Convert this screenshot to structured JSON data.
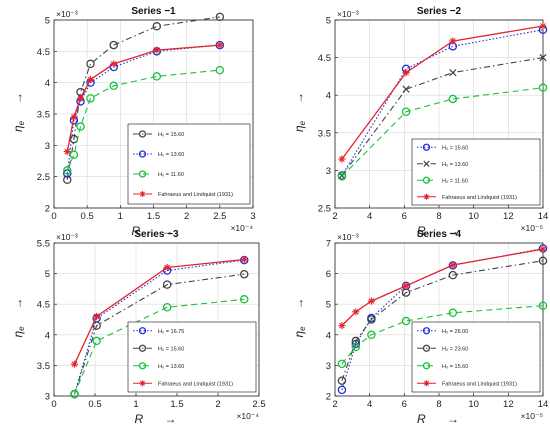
{
  "figure": {
    "title": ""
  },
  "chart_data": [
    {
      "type": "line",
      "title": "Series −1",
      "xlabel": "R",
      "ylabel": "η",
      "ylabel_sub": "e",
      "xlim": [
        0,
        3
      ],
      "ylim": [
        2,
        5
      ],
      "xticks": [
        0,
        0.5,
        1,
        1.5,
        2,
        2.5,
        3
      ],
      "yticks": [
        2,
        2.5,
        3,
        3.5,
        4,
        4.5,
        5
      ],
      "xtick_labels": [
        "0",
        "0.5",
        "1",
        "1.5",
        "2",
        "2.5",
        "3"
      ],
      "ytick_labels": [
        "2",
        "2.5",
        "3",
        "3.5",
        "4",
        "4.5",
        "5"
      ],
      "x_multiplier": "×10⁻⁴",
      "y_multiplier": "×10⁻³",
      "grid": true,
      "legend_position": "bottom-right",
      "series": [
        {
          "name": "H₀ = 15.60",
          "color": "#444444",
          "dash": "6,3,1.5,3",
          "marker": "circle",
          "x": [
            0.2,
            0.3,
            0.4,
            0.55,
            0.9,
            1.55,
            2.5
          ],
          "y": [
            2.45,
            3.1,
            3.85,
            4.3,
            4.6,
            4.9,
            5.05
          ]
        },
        {
          "name": "H₀ = 13.60",
          "color": "#1f2fd6",
          "dash": "1.5,2",
          "marker": "circle",
          "x": [
            0.2,
            0.3,
            0.4,
            0.55,
            0.9,
            1.55,
            2.5
          ],
          "y": [
            2.55,
            3.4,
            3.7,
            4.0,
            4.25,
            4.5,
            4.6
          ]
        },
        {
          "name": "H₀ = 11.60",
          "color": "#19c23a",
          "dash": "6,4",
          "marker": "circle",
          "x": [
            0.2,
            0.3,
            0.4,
            0.55,
            0.9,
            1.55,
            2.5
          ],
          "y": [
            2.6,
            2.85,
            3.3,
            3.75,
            3.95,
            4.1,
            4.2
          ]
        },
        {
          "name": "Fahraeus and Lindquist (1931)",
          "color": "#e3242b",
          "dash": "",
          "marker": "star",
          "x": [
            0.2,
            0.3,
            0.4,
            0.55,
            0.9,
            1.55,
            2.5
          ],
          "y": [
            2.9,
            3.45,
            3.75,
            4.05,
            4.3,
            4.52,
            4.6
          ]
        }
      ]
    },
    {
      "type": "line",
      "title": "Series −2",
      "xlabel": "R",
      "ylabel": "η",
      "ylabel_sub": "e",
      "xlim": [
        2,
        14
      ],
      "ylim": [
        2.5,
        5
      ],
      "xticks": [
        2,
        4,
        6,
        8,
        10,
        12,
        14
      ],
      "yticks": [
        2.5,
        3,
        3.5,
        4,
        4.5,
        5
      ],
      "xtick_labels": [
        "2",
        "4",
        "6",
        "8",
        "10",
        "12",
        "14"
      ],
      "ytick_labels": [
        "2.5",
        "3",
        "3.5",
        "4",
        "4.5",
        "5"
      ],
      "x_multiplier": "×10⁻⁵",
      "y_multiplier": "×10⁻³",
      "grid": true,
      "legend_position": "bottom-right",
      "series": [
        {
          "name": "H₀ = 15.60",
          "color": "#1f2fd6",
          "dash": "1.5,2",
          "marker": "circle",
          "x": [
            2.4,
            6.1,
            8.8,
            14
          ],
          "y": [
            2.93,
            4.35,
            4.65,
            4.87
          ]
        },
        {
          "name": "H₀ = 13.60",
          "color": "#444444",
          "dash": "6,3,1.5,3",
          "marker": "x",
          "x": [
            2.4,
            6.1,
            8.8,
            14
          ],
          "y": [
            2.93,
            4.08,
            4.3,
            4.5
          ]
        },
        {
          "name": "H₀ = 11.60",
          "color": "#19c23a",
          "dash": "6,4",
          "marker": "circle",
          "x": [
            2.4,
            6.1,
            8.8,
            14
          ],
          "y": [
            2.92,
            3.78,
            3.95,
            4.1
          ]
        },
        {
          "name": "Fahraeus and Lindquist (1931)",
          "color": "#e3242b",
          "dash": "",
          "marker": "star",
          "x": [
            2.4,
            6.1,
            8.8,
            14
          ],
          "y": [
            3.15,
            4.3,
            4.72,
            4.92
          ]
        }
      ]
    },
    {
      "type": "line",
      "title": "Series −3",
      "xlabel": "R",
      "ylabel": "η",
      "ylabel_sub": "e",
      "xlim": [
        0,
        2.5
      ],
      "ylim": [
        3,
        5.5
      ],
      "xticks": [
        0,
        0.5,
        1,
        1.5,
        2,
        2.5
      ],
      "yticks": [
        3,
        3.5,
        4,
        4.5,
        5,
        5.5
      ],
      "xtick_labels": [
        "0",
        "0.5",
        "1",
        "1.5",
        "2",
        "2.5"
      ],
      "ytick_labels": [
        "3",
        "3.5",
        "4",
        "4.5",
        "5",
        "5.5"
      ],
      "x_multiplier": "×10⁻⁴",
      "y_multiplier": "×10⁻³",
      "grid": true,
      "legend_position": "bottom-right",
      "series": [
        {
          "name": "H₀ = 16.75",
          "color": "#1f2fd6",
          "dash": "1.5,2",
          "marker": "circle",
          "x": [
            0.25,
            0.52,
            1.38,
            2.32
          ],
          "y": [
            3.03,
            4.27,
            5.05,
            5.22
          ]
        },
        {
          "name": "H₀ = 15.60",
          "color": "#444444",
          "dash": "6,3,1.5,3",
          "marker": "circle",
          "x": [
            0.25,
            0.52,
            1.38,
            2.32
          ],
          "y": [
            3.03,
            4.15,
            4.82,
            4.99
          ]
        },
        {
          "name": "H₀ = 13.60",
          "color": "#19c23a",
          "dash": "6,4",
          "marker": "circle",
          "x": [
            0.25,
            0.52,
            1.38,
            2.32
          ],
          "y": [
            3.03,
            3.9,
            4.45,
            4.58
          ]
        },
        {
          "name": "Fahraeus and Lindquist (1931)",
          "color": "#e3242b",
          "dash": "",
          "marker": "star",
          "x": [
            0.25,
            0.52,
            1.38,
            2.32
          ],
          "y": [
            3.52,
            4.3,
            5.1,
            5.23
          ]
        }
      ]
    },
    {
      "type": "line",
      "title": "Series −4",
      "xlabel": "R",
      "ylabel": "η",
      "ylabel_sub": "e",
      "xlim": [
        2,
        14
      ],
      "ylim": [
        2,
        7
      ],
      "xticks": [
        2,
        4,
        6,
        8,
        10,
        12,
        14
      ],
      "yticks": [
        2,
        3,
        4,
        5,
        6,
        7
      ],
      "xtick_labels": [
        "2",
        "4",
        "6",
        "8",
        "10",
        "12",
        "14"
      ],
      "ytick_labels": [
        "2",
        "3",
        "4",
        "5",
        "6",
        "7"
      ],
      "x_multiplier": "×10⁻⁵",
      "y_multiplier": "×10⁻³",
      "grid": true,
      "legend_position": "bottom-right",
      "series": [
        {
          "name": "H₀ = 26.00",
          "color": "#1f2fd6",
          "dash": "1.5,2",
          "marker": "circle",
          "x": [
            2.4,
            3.2,
            4.1,
            6.1,
            8.8,
            14
          ],
          "y": [
            2.2,
            3.7,
            4.55,
            5.6,
            6.27,
            6.82
          ]
        },
        {
          "name": "H₀ = 23.60",
          "color": "#444444",
          "dash": "6,3,1.5,3",
          "marker": "circle",
          "x": [
            2.4,
            3.2,
            4.1,
            6.1,
            8.8,
            14
          ],
          "y": [
            2.5,
            3.8,
            4.5,
            5.38,
            5.95,
            6.42
          ]
        },
        {
          "name": "H₀ = 15.60",
          "color": "#19c23a",
          "dash": "6,4",
          "marker": "circle",
          "x": [
            2.4,
            3.2,
            4.1,
            6.1,
            8.8,
            14
          ],
          "y": [
            3.05,
            3.6,
            4.0,
            4.45,
            4.72,
            4.95
          ]
        },
        {
          "name": "Fahraeus and Lindquist (1931)",
          "color": "#e3242b",
          "dash": "",
          "marker": "star",
          "x": [
            2.4,
            3.2,
            4.1,
            6.1,
            8.8,
            14
          ],
          "y": [
            4.3,
            4.75,
            5.1,
            5.6,
            6.28,
            6.8
          ]
        }
      ]
    }
  ]
}
